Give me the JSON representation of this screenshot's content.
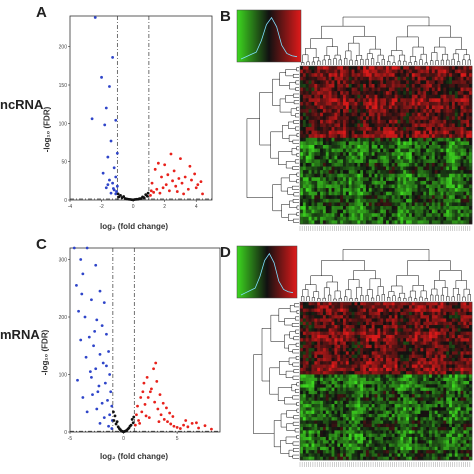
{
  "panels": {
    "a_letter": "A",
    "b_letter": "B",
    "c_letter": "C",
    "d_letter": "D",
    "row_top_label": "ncRNA",
    "row_bottom_label": "mRNA"
  },
  "colors": {
    "up": "#e8211b",
    "down": "#2f45c9",
    "ns": "#111111",
    "heat_high": "#e01a1a",
    "heat_mid": "#111111",
    "heat_low": "#3dd81f"
  },
  "chart_data": [
    {
      "id": "A",
      "type": "scatter",
      "title": "",
      "xlabel": "log₂ (fold change)",
      "ylabel": "-log₁₀ (FDR)",
      "xlim": [
        -4,
        5
      ],
      "ylim": [
        0,
        240
      ],
      "x_ticks": [
        -4,
        -2,
        0,
        2,
        4
      ],
      "y_ticks": [
        0,
        50,
        100,
        150,
        200
      ],
      "fold_threshold": [
        -1,
        1
      ],
      "fdr_threshold": 1.3,
      "series": [
        {
          "color_key": "down",
          "points": [
            [
              -2.4,
              238
            ],
            [
              -1.3,
              186
            ],
            [
              -1.5,
              148
            ],
            [
              -2.0,
              160
            ],
            [
              -1.7,
              120
            ],
            [
              -1.1,
              104
            ],
            [
              -1.8,
              98
            ],
            [
              -2.6,
              106
            ],
            [
              -1.4,
              77
            ],
            [
              -1.0,
              61
            ],
            [
              -1.6,
              56
            ],
            [
              -1.2,
              42
            ],
            [
              -1.9,
              35
            ],
            [
              -1.1,
              30
            ],
            [
              -1.5,
              26
            ],
            [
              -1.3,
              22
            ],
            [
              -1.0,
              18
            ],
            [
              -1.7,
              16
            ],
            [
              -1.2,
              13
            ],
            [
              -1.05,
              11
            ],
            [
              -1.4,
              9
            ],
            [
              -1.1,
              8
            ],
            [
              -1.6,
              20
            ],
            [
              -1.25,
              15
            ]
          ]
        },
        {
          "color_key": "ns",
          "points": [
            [
              -0.9,
              4
            ],
            [
              -0.7,
              3
            ],
            [
              -0.5,
              2
            ],
            [
              -0.3,
              1
            ],
            [
              -0.1,
              0.5
            ],
            [
              0.1,
              0.6
            ],
            [
              0.3,
              1
            ],
            [
              0.5,
              2
            ],
            [
              0.7,
              3
            ],
            [
              0.9,
              5
            ],
            [
              -0.8,
              6
            ],
            [
              0.8,
              7
            ],
            [
              -0.6,
              4.5
            ],
            [
              0.6,
              4
            ],
            [
              -0.4,
              1.5
            ],
            [
              0.4,
              1.7
            ],
            [
              0.0,
              0.3
            ],
            [
              -0.95,
              8
            ],
            [
              0.95,
              9
            ],
            [
              -0.2,
              0.8
            ],
            [
              0.2,
              0.9
            ]
          ]
        },
        {
          "color_key": "up",
          "points": [
            [
              1.1,
              6
            ],
            [
              1.3,
              10
            ],
            [
              1.5,
              14
            ],
            [
              1.7,
              9
            ],
            [
              1.9,
              16
            ],
            [
              2.1,
              20
            ],
            [
              2.3,
              12
            ],
            [
              2.5,
              25
            ],
            [
              2.7,
              18
            ],
            [
              2.9,
              28
            ],
            [
              3.1,
              22
            ],
            [
              3.3,
              30
            ],
            [
              3.5,
              14
            ],
            [
              3.7,
              26
            ],
            [
              3.9,
              34
            ],
            [
              4.1,
              20
            ],
            [
              4.3,
              24
            ],
            [
              1.4,
              40
            ],
            [
              2.0,
              46
            ],
            [
              2.6,
              38
            ],
            [
              3.0,
              54
            ],
            [
              1.8,
              30
            ],
            [
              2.2,
              33
            ],
            [
              1.2,
              22
            ],
            [
              3.6,
              44
            ],
            [
              4.0,
              16
            ],
            [
              2.4,
              60
            ],
            [
              1.6,
              48
            ],
            [
              2.8,
              11
            ],
            [
              3.2,
              8
            ],
            [
              1.15,
              12
            ],
            [
              4.4,
              8
            ]
          ]
        }
      ]
    },
    {
      "id": "C",
      "type": "scatter",
      "title": "",
      "xlabel": "log₂ (fold change)",
      "ylabel": "-log₁₀ (FDR)",
      "xlim": [
        -5,
        9
      ],
      "ylim": [
        0,
        320
      ],
      "x_ticks": [
        -5,
        0,
        5
      ],
      "y_ticks": [
        0,
        100,
        200,
        300
      ],
      "fold_threshold": [
        -1,
        1
      ],
      "fdr_threshold": 1.3,
      "series": [
        {
          "color_key": "down",
          "points": [
            [
              -4.6,
              320
            ],
            [
              -3.4,
              320
            ],
            [
              -4.0,
              300
            ],
            [
              -2.6,
              290
            ],
            [
              -3.8,
              275
            ],
            [
              -4.4,
              255
            ],
            [
              -2.2,
              245
            ],
            [
              -3.0,
              230
            ],
            [
              -1.8,
              225
            ],
            [
              -4.2,
              210
            ],
            [
              -3.6,
              200
            ],
            [
              -2.5,
              195
            ],
            [
              -2.0,
              185
            ],
            [
              -1.6,
              170
            ],
            [
              -3.2,
              165
            ],
            [
              -4.0,
              160
            ],
            [
              -2.8,
              150
            ],
            [
              -1.4,
              140
            ],
            [
              -2.2,
              135
            ],
            [
              -3.5,
              130
            ],
            [
              -1.9,
              120
            ],
            [
              -2.6,
              110
            ],
            [
              -1.3,
              100
            ],
            [
              -3.0,
              95
            ],
            [
              -4.3,
              90
            ],
            [
              -1.7,
              85
            ],
            [
              -2.3,
              80
            ],
            [
              -1.2,
              70
            ],
            [
              -2.9,
              65
            ],
            [
              -3.8,
              60
            ],
            [
              -1.5,
              55
            ],
            [
              -2.0,
              50
            ],
            [
              -1.1,
              45
            ],
            [
              -2.5,
              40
            ],
            [
              -3.4,
              35
            ],
            [
              -1.3,
              30
            ],
            [
              -1.8,
              25
            ],
            [
              -1.05,
              20
            ],
            [
              -2.2,
              15
            ],
            [
              -1.4,
              10
            ],
            [
              -1.1,
              6
            ],
            [
              -2.7,
              175
            ],
            [
              -3.9,
              240
            ],
            [
              -1.6,
              115
            ],
            [
              -2.4,
              70
            ],
            [
              -3.1,
              105
            ]
          ]
        },
        {
          "color_key": "ns",
          "points": [
            [
              -0.9,
              20
            ],
            [
              -0.7,
              14
            ],
            [
              -0.5,
              9
            ],
            [
              -0.3,
              4
            ],
            [
              -0.1,
              1
            ],
            [
              0.1,
              1
            ],
            [
              0.3,
              3
            ],
            [
              0.5,
              7
            ],
            [
              0.7,
              12
            ],
            [
              0.9,
              16
            ],
            [
              -0.8,
              28
            ],
            [
              0.8,
              22
            ],
            [
              -0.6,
              18
            ],
            [
              0.6,
              10
            ],
            [
              -0.4,
              6
            ],
            [
              0.4,
              5
            ],
            [
              0.0,
              0.5
            ],
            [
              -0.95,
              35
            ],
            [
              0.95,
              26
            ],
            [
              -0.2,
              2
            ],
            [
              0.2,
              2
            ]
          ]
        },
        {
          "color_key": "up",
          "points": [
            [
              1.1,
              12
            ],
            [
              1.4,
              20
            ],
            [
              1.7,
              35
            ],
            [
              2.0,
              48
            ],
            [
              2.3,
              60
            ],
            [
              2.6,
              75
            ],
            [
              2.9,
              52
            ],
            [
              3.2,
              40
            ],
            [
              3.5,
              30
            ],
            [
              3.8,
              22
            ],
            [
              4.1,
              18
            ],
            [
              4.4,
              14
            ],
            [
              4.7,
              10
            ],
            [
              5.0,
              8
            ],
            [
              5.3,
              6
            ],
            [
              5.6,
              12
            ],
            [
              6.0,
              9
            ],
            [
              6.4,
              15
            ],
            [
              7.0,
              7
            ],
            [
              7.6,
              11
            ],
            [
              8.2,
              5
            ],
            [
              1.3,
              45
            ],
            [
              1.6,
              60
            ],
            [
              1.9,
              85
            ],
            [
              2.2,
              95
            ],
            [
              2.5,
              70
            ],
            [
              2.8,
              110
            ],
            [
              3.1,
              88
            ],
            [
              3.4,
              65
            ],
            [
              3.7,
              50
            ],
            [
              4.0,
              42
            ],
            [
              4.3,
              33
            ],
            [
              4.6,
              27
            ],
            [
              1.2,
              30
            ],
            [
              1.5,
              15
            ],
            [
              2.4,
              25
            ],
            [
              3.3,
              18
            ],
            [
              5.8,
              20
            ],
            [
              6.8,
              16
            ],
            [
              3.0,
              120
            ],
            [
              1.8,
              70
            ],
            [
              2.1,
              28
            ]
          ]
        }
      ]
    },
    {
      "id": "B",
      "type": "heatmap",
      "title": "",
      "rows": 44,
      "cols": 60,
      "value_range": [
        -3,
        3
      ],
      "color_scale": [
        "heat_low",
        "heat_mid",
        "heat_high"
      ],
      "row_cluster_dendrogram": "left",
      "col_cluster_dendrogram": "top"
    },
    {
      "id": "D",
      "type": "heatmap",
      "title": "",
      "rows": 48,
      "cols": 60,
      "value_range": [
        -3,
        3
      ],
      "color_scale": [
        "heat_low",
        "heat_mid",
        "heat_high"
      ],
      "row_cluster_dendrogram": "left",
      "col_cluster_dendrogram": "top"
    }
  ]
}
